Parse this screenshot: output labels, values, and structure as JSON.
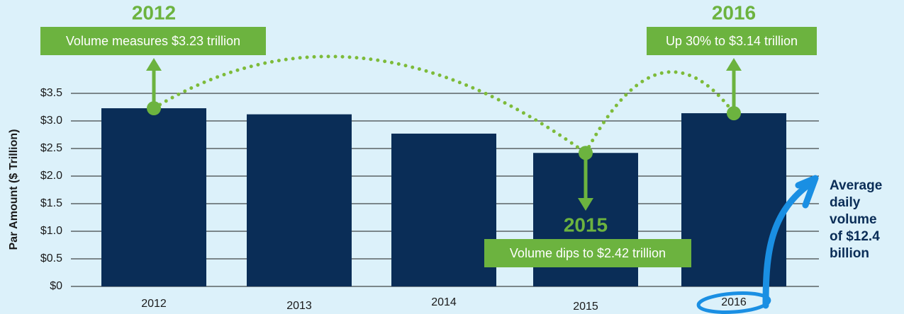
{
  "chart_data": {
    "type": "bar",
    "y_axis_label": "Par Amount ($ Trillion)",
    "categories": [
      "2012",
      "2013",
      "2014",
      "2015",
      "2016"
    ],
    "values": [
      3.23,
      3.12,
      2.77,
      2.42,
      3.14
    ],
    "color": "#0a2d57",
    "ylim": [
      0,
      3.5
    ],
    "yticks": [
      {
        "value": 0,
        "label": "$0"
      },
      {
        "value": 0.5,
        "label": "$0.5"
      },
      {
        "value": 1,
        "label": "$1.0"
      },
      {
        "value": 1.5,
        "label": "$1.5"
      },
      {
        "value": 2,
        "label": "$2.0"
      },
      {
        "value": 2.5,
        "label": "$2.5"
      },
      {
        "value": 3,
        "label": "$3.0"
      },
      {
        "value": 3.5,
        "label": "$3.5"
      }
    ],
    "grid": true,
    "annotations": [
      {
        "title": "2012",
        "text": "Volume measures $3.23 trillion"
      },
      {
        "title": "2016",
        "text": "Up 30% to $3.14 trillion"
      },
      {
        "title": "2015",
        "text": "Volume dips to $2.42 trillion"
      }
    ],
    "side_note": [
      "Average",
      "daily",
      "volume",
      "of $12.4",
      "billion"
    ]
  }
}
